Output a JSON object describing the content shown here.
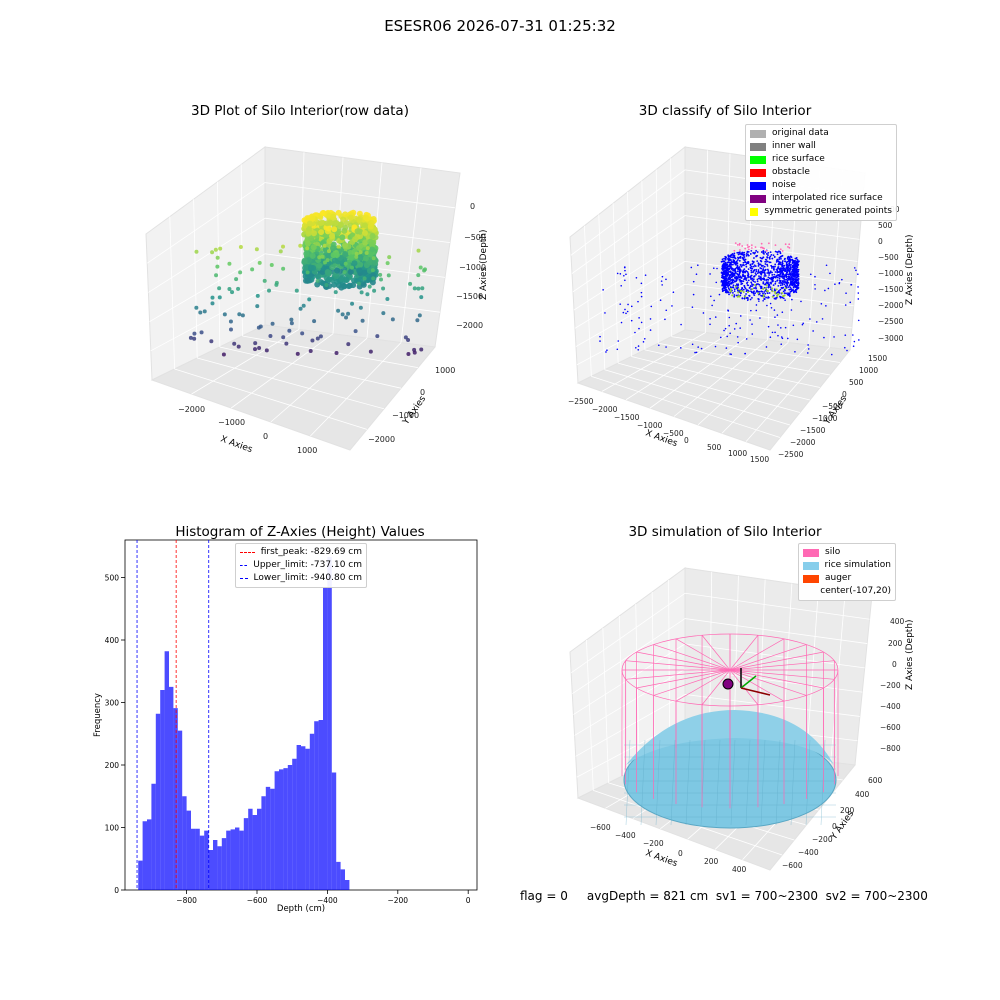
{
  "figure": {
    "suptitle": "ESESR06 2026-07-31 01:25:32",
    "status_line": "flag = 0     avgDepth = 821 cm  sv1 = 700~2300  sv2 = 700~2300"
  },
  "chart_data": [
    {
      "type": "scatter",
      "title": "3D Plot of Silo Interior(row data)",
      "xlabel": "X Axies",
      "ylabel": "Y Axies",
      "zlabel": "Z Axies (Depth)",
      "x_ticks": [
        "−2000",
        "−1000",
        "0",
        "1000"
      ],
      "y_ticks": [
        "−2000",
        "−1000",
        "0",
        "1000"
      ],
      "z_ticks": [
        "0",
        "−500",
        "−1000",
        "−1500",
        "−2000"
      ],
      "colormap": "viridis",
      "description_series": "raw point cloud"
    },
    {
      "type": "scatter",
      "title": "3D classify of Silo Interior",
      "xlabel": "X Axies",
      "ylabel": "Y Axies",
      "zlabel": "Z Axies (Depth)",
      "x_ticks": [
        "−2500",
        "−2000",
        "−1500",
        "−1000",
        "−500",
        "0",
        "500",
        "1000",
        "1500"
      ],
      "y_ticks": [
        "−2500",
        "−2000",
        "−1500",
        "−1000",
        "−500",
        "0",
        "500",
        "1000",
        "1500"
      ],
      "z_ticks": [
        "1000",
        "500",
        "0",
        "−500",
        "−1000",
        "−1500",
        "−2000",
        "−2500",
        "−3000"
      ],
      "z_tick_partial": "00",
      "legend": [
        {
          "label": "original data",
          "color": "#b0b0b0"
        },
        {
          "label": "inner wall",
          "color": "#808080"
        },
        {
          "label": "rice surface",
          "color": "#00ff00"
        },
        {
          "label": "obstacle",
          "color": "#ff0000"
        },
        {
          "label": "noise",
          "color": "#0000ff"
        },
        {
          "label": "interpolated rice surface",
          "color": "#800080"
        },
        {
          "label": "symmetric generated points",
          "color": "#ffff00"
        }
      ]
    },
    {
      "type": "bar",
      "title": "Histogram of Z-Axies (Height) Values",
      "xlabel": "Depth (cm)",
      "ylabel": "Frequency",
      "xlim": [
        -975,
        25
      ],
      "ylim": [
        0,
        560
      ],
      "bin_width": 12.5,
      "x_ticks": [
        -800,
        -600,
        -400,
        -200,
        0
      ],
      "x_tick_labels": [
        "−800",
        "−600",
        "−400",
        "−200",
        "0"
      ],
      "y_ticks": [
        0,
        100,
        200,
        300,
        400,
        500
      ],
      "bar_color": "#0000ff",
      "bins": [
        {
          "x": -937.5,
          "v": 47
        },
        {
          "x": -925,
          "v": 110
        },
        {
          "x": -912.5,
          "v": 113
        },
        {
          "x": -900,
          "v": 170
        },
        {
          "x": -887.5,
          "v": 282
        },
        {
          "x": -875,
          "v": 320
        },
        {
          "x": -862.5,
          "v": 382
        },
        {
          "x": -850,
          "v": 325
        },
        {
          "x": -837.5,
          "v": 291
        },
        {
          "x": -825,
          "v": 255
        },
        {
          "x": -812.5,
          "v": 150
        },
        {
          "x": -800,
          "v": 127
        },
        {
          "x": -787.5,
          "v": 98
        },
        {
          "x": -775,
          "v": 98
        },
        {
          "x": -762.5,
          "v": 87
        },
        {
          "x": -750,
          "v": 95
        },
        {
          "x": -737.5,
          "v": 64
        },
        {
          "x": -725,
          "v": 80
        },
        {
          "x": -712.5,
          "v": 70
        },
        {
          "x": -700,
          "v": 83
        },
        {
          "x": -687.5,
          "v": 95
        },
        {
          "x": -675,
          "v": 97
        },
        {
          "x": -662.5,
          "v": 100
        },
        {
          "x": -650,
          "v": 95
        },
        {
          "x": -637.5,
          "v": 115
        },
        {
          "x": -625,
          "v": 130
        },
        {
          "x": -612.5,
          "v": 120
        },
        {
          "x": -600,
          "v": 130
        },
        {
          "x": -587.5,
          "v": 150
        },
        {
          "x": -575,
          "v": 165
        },
        {
          "x": -562.5,
          "v": 162
        },
        {
          "x": -550,
          "v": 190
        },
        {
          "x": -537.5,
          "v": 193
        },
        {
          "x": -525,
          "v": 195
        },
        {
          "x": -512.5,
          "v": 200
        },
        {
          "x": -500,
          "v": 210
        },
        {
          "x": -487.5,
          "v": 232
        },
        {
          "x": -475,
          "v": 230
        },
        {
          "x": -462.5,
          "v": 226
        },
        {
          "x": -450,
          "v": 250
        },
        {
          "x": -437.5,
          "v": 270
        },
        {
          "x": -425,
          "v": 272
        },
        {
          "x": -412.5,
          "v": 485
        },
        {
          "x": -400,
          "v": 533
        },
        {
          "x": -387.5,
          "v": 188
        },
        {
          "x": -375,
          "v": 45
        },
        {
          "x": -362.5,
          "v": 33
        },
        {
          "x": -350,
          "v": 16
        }
      ],
      "vlines": [
        {
          "x": -829.69,
          "color": "#ff0000",
          "label": "first_peak: -829.69 cm"
        },
        {
          "x": -737.1,
          "color": "#0000ff",
          "label": "Upper_limit: -737.10 cm"
        },
        {
          "x": -940.8,
          "color": "#0000ff",
          "label": "Lower_limit: -940.80 cm"
        }
      ]
    },
    {
      "type": "surface",
      "title": "3D simulation of Silo Interior",
      "xlabel": "X Axies",
      "ylabel": "Y Axies",
      "zlabel": "Z Axies (Depth)",
      "x_ticks": [
        "−600",
        "−400",
        "−200",
        "0",
        "200",
        "400"
      ],
      "y_ticks": [
        "−600",
        "−400",
        "−200",
        "0",
        "200",
        "400",
        "600"
      ],
      "z_ticks": [
        "400",
        "200",
        "0",
        "−200",
        "−400",
        "−600",
        "−800"
      ],
      "legend": [
        {
          "label": "silo",
          "color": "#ff69b4"
        },
        {
          "label": "rice simulation",
          "color": "#87ceeb"
        },
        {
          "label": "auger",
          "color": "#ff4500"
        },
        {
          "label": "center(-107,20)",
          "color": ""
        }
      ]
    }
  ]
}
